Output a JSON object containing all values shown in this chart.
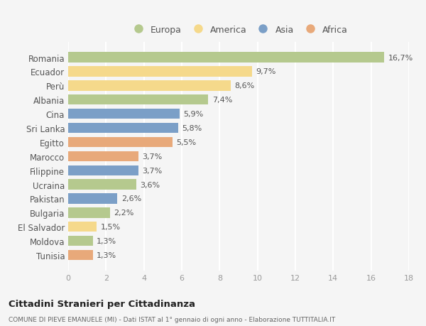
{
  "categories": [
    "Romania",
    "Ecuador",
    "Perù",
    "Albania",
    "Cina",
    "Sri Lanka",
    "Egitto",
    "Marocco",
    "Filippine",
    "Ucraina",
    "Pakistan",
    "Bulgaria",
    "El Salvador",
    "Moldova",
    "Tunisia"
  ],
  "values": [
    16.7,
    9.7,
    8.6,
    7.4,
    5.9,
    5.8,
    5.5,
    3.7,
    3.7,
    3.6,
    2.6,
    2.2,
    1.5,
    1.3,
    1.3
  ],
  "labels": [
    "16,7%",
    "9,7%",
    "8,6%",
    "7,4%",
    "5,9%",
    "5,8%",
    "5,5%",
    "3,7%",
    "3,7%",
    "3,6%",
    "2,6%",
    "2,2%",
    "1,5%",
    "1,3%",
    "1,3%"
  ],
  "continents": [
    "Europa",
    "America",
    "America",
    "Europa",
    "Asia",
    "Asia",
    "Africa",
    "Africa",
    "Asia",
    "Europa",
    "Asia",
    "Europa",
    "America",
    "Europa",
    "Africa"
  ],
  "continent_colors": {
    "Europa": "#b5c98e",
    "America": "#f5d98b",
    "Asia": "#7b9fc7",
    "Africa": "#e8a97a"
  },
  "legend_order": [
    "Europa",
    "America",
    "Asia",
    "Africa"
  ],
  "title": "Cittadini Stranieri per Cittadinanza",
  "subtitle": "COMUNE DI PIEVE EMANUELE (MI) - Dati ISTAT al 1° gennaio di ogni anno - Elaborazione TUTTITALIA.IT",
  "xlim": [
    0,
    18
  ],
  "xticks": [
    0,
    2,
    4,
    6,
    8,
    10,
    12,
    14,
    16,
    18
  ],
  "background_color": "#f5f5f5",
  "grid_color": "#ffffff",
  "bar_height": 0.72
}
